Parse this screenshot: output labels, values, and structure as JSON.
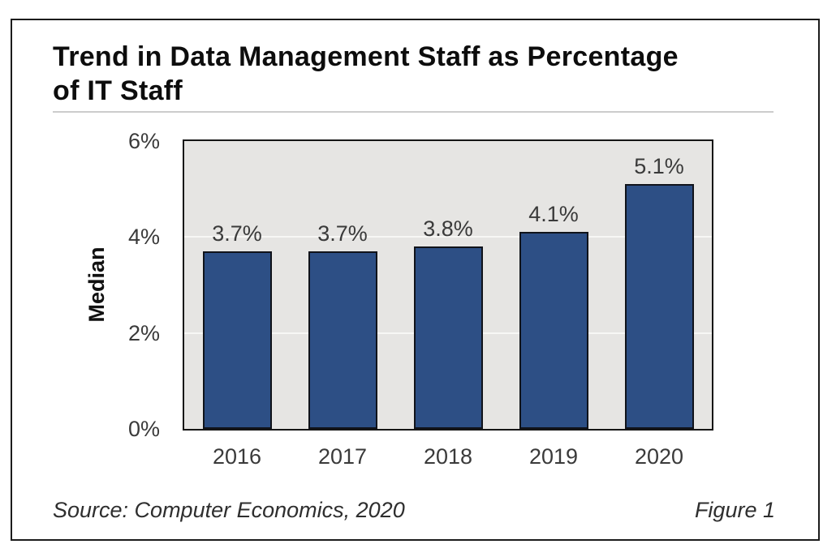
{
  "figure": {
    "title_lines": [
      "Trend in Data Management Staff as Percentage",
      "of IT Staff"
    ],
    "source": "Source: Computer Economics, 2020",
    "figure_label": "Figure 1"
  },
  "chart_data": {
    "type": "bar",
    "title": "Trend in Data Management Staff as Percentage of IT Staff",
    "categories": [
      "2016",
      "2017",
      "2018",
      "2019",
      "2020"
    ],
    "values": [
      3.7,
      3.7,
      3.8,
      4.1,
      5.1
    ],
    "bar_labels": [
      "3.7%",
      "3.7%",
      "3.8%",
      "4.1%",
      "5.1%"
    ],
    "xlabel": "",
    "ylabel": "Median",
    "ylim": [
      0,
      6
    ],
    "ytick_values": [
      0,
      2,
      4,
      6
    ],
    "ytick_labels": [
      "0%",
      "2%",
      "4%",
      "6%"
    ],
    "gridline_values": [
      2,
      4
    ],
    "legend": "none",
    "grid": "faint-horizontal-white",
    "source": "Source: Computer Economics, 2020",
    "figure_label": "Figure 1",
    "colors": {
      "bar_fill": "#2d4f85",
      "bar_border": "#10131a",
      "plot_background": "#e6e5e3",
      "plot_border": "#161616",
      "gridline": "#f7f7f5",
      "tick_text": "#3a3a3a",
      "value_text": "#3a3a3a",
      "title_text": "#0d0d0d",
      "frame_border": "#1c1c1c"
    }
  }
}
